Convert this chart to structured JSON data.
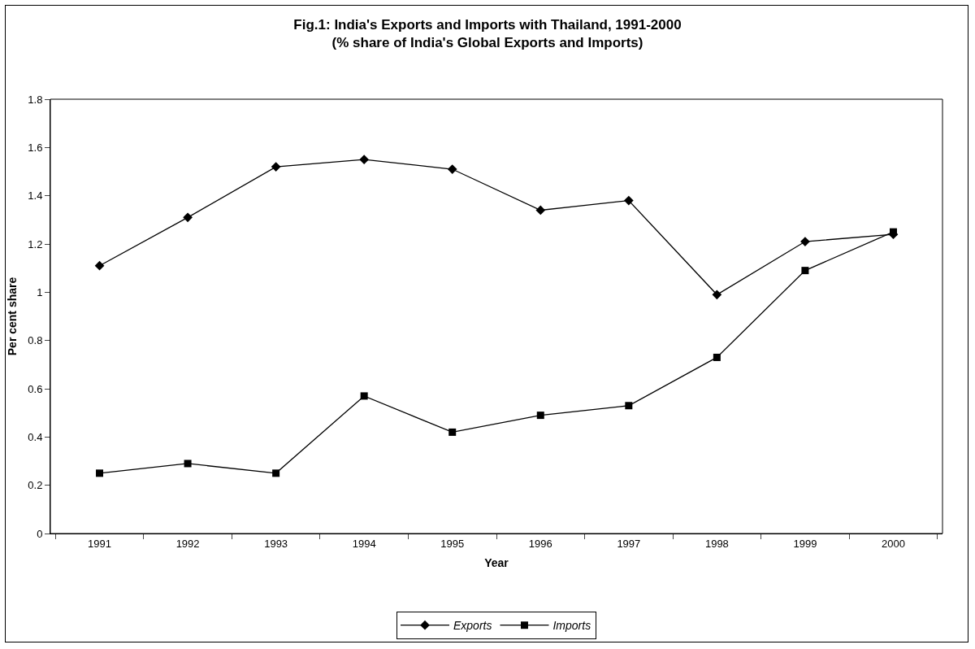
{
  "chart_data": {
    "type": "line",
    "title": "Fig.1: India's Exports and Imports with Thailand, 1991-2000",
    "subtitle": "(% share of India's Global Exports and Imports)",
    "xlabel": "Year",
    "ylabel": "Per cent share",
    "categories": [
      "1991",
      "1992",
      "1993",
      "1994",
      "1995",
      "1996",
      "1997",
      "1998",
      "1999",
      "2000"
    ],
    "series": [
      {
        "name": "Exports",
        "color": "#000000",
        "marker": "diamond",
        "values": [
          1.11,
          1.31,
          1.52,
          1.55,
          1.51,
          1.34,
          1.38,
          0.99,
          1.21,
          1.24
        ]
      },
      {
        "name": "Imports",
        "color": "#000000",
        "marker": "square",
        "values": [
          0.25,
          0.29,
          0.25,
          0.57,
          0.42,
          0.49,
          0.53,
          0.73,
          1.09,
          1.25
        ]
      }
    ],
    "ylim": [
      0,
      1.8
    ],
    "yticks": [
      0,
      0.2,
      0.4,
      0.6,
      0.8,
      1,
      1.2,
      1.4,
      1.6,
      1.8
    ],
    "grid": false,
    "legend": "bottom",
    "line_style": "solid"
  }
}
